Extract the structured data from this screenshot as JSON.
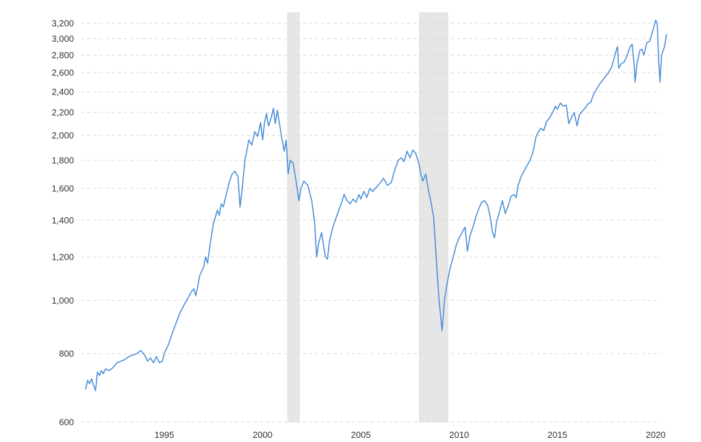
{
  "chart_data": {
    "type": "line",
    "title": "",
    "xlabel": "",
    "ylabel": "",
    "y_scale": "log",
    "xlim": [
      1990.75,
      2020.25
    ],
    "ylim": [
      600,
      3350
    ],
    "grid": true,
    "legend": "none",
    "x_ticks": [
      1995,
      2000,
      2005,
      2010,
      2015,
      2020
    ],
    "x_tick_labels": [
      "1995",
      "2000",
      "2005",
      "2010",
      "2015",
      "2020"
    ],
    "y_ticks": [
      600,
      800,
      1000,
      1200,
      1400,
      1600,
      1800,
      2000,
      2200,
      2400,
      2600,
      2800,
      3000,
      3200
    ],
    "y_tick_labels": [
      "600",
      "800",
      "1,000",
      "1,200",
      "1,400",
      "1,600",
      "1,800",
      "2,000",
      "2,200",
      "2,400",
      "2,600",
      "2,800",
      "3,000",
      "3,200"
    ],
    "shaded_periods": [
      [
        2001.25,
        2001.9
      ],
      [
        2007.95,
        2009.45
      ]
    ],
    "colors": {
      "series": "#4a90d9",
      "shade": "#e6e6e6",
      "grid": "#d9d9d9",
      "text": "#333333"
    },
    "series": [
      {
        "points": [
          [
            1991.0,
            690
          ],
          [
            1991.1,
            715
          ],
          [
            1991.2,
            705
          ],
          [
            1991.3,
            720
          ],
          [
            1991.4,
            700
          ],
          [
            1991.5,
            685
          ],
          [
            1991.6,
            740
          ],
          [
            1991.7,
            730
          ],
          [
            1991.8,
            745
          ],
          [
            1991.9,
            735
          ],
          [
            1992.0,
            750
          ],
          [
            1992.2,
            745
          ],
          [
            1992.4,
            755
          ],
          [
            1992.6,
            770
          ],
          [
            1992.8,
            775
          ],
          [
            1993.0,
            780
          ],
          [
            1993.2,
            790
          ],
          [
            1993.4,
            795
          ],
          [
            1993.6,
            800
          ],
          [
            1993.8,
            810
          ],
          [
            1994.0,
            795
          ],
          [
            1994.15,
            775
          ],
          [
            1994.3,
            785
          ],
          [
            1994.45,
            770
          ],
          [
            1994.6,
            790
          ],
          [
            1994.75,
            770
          ],
          [
            1994.9,
            775
          ],
          [
            1995.0,
            800
          ],
          [
            1995.2,
            830
          ],
          [
            1995.4,
            870
          ],
          [
            1995.6,
            910
          ],
          [
            1995.8,
            950
          ],
          [
            1996.0,
            980
          ],
          [
            1996.2,
            1010
          ],
          [
            1996.4,
            1040
          ],
          [
            1996.5,
            1050
          ],
          [
            1996.6,
            1020
          ],
          [
            1996.7,
            1060
          ],
          [
            1996.8,
            1110
          ],
          [
            1997.0,
            1150
          ],
          [
            1997.1,
            1200
          ],
          [
            1997.2,
            1170
          ],
          [
            1997.35,
            1280
          ],
          [
            1997.5,
            1380
          ],
          [
            1997.6,
            1420
          ],
          [
            1997.7,
            1460
          ],
          [
            1997.8,
            1430
          ],
          [
            1997.9,
            1500
          ],
          [
            1998.0,
            1480
          ],
          [
            1998.15,
            1560
          ],
          [
            1998.3,
            1640
          ],
          [
            1998.45,
            1700
          ],
          [
            1998.6,
            1720
          ],
          [
            1998.75,
            1680
          ],
          [
            1998.85,
            1480
          ],
          [
            1998.95,
            1580
          ],
          [
            1999.1,
            1800
          ],
          [
            1999.3,
            1960
          ],
          [
            1999.45,
            1920
          ],
          [
            1999.6,
            2030
          ],
          [
            1999.75,
            1990
          ],
          [
            1999.9,
            2110
          ],
          [
            2000.0,
            1960
          ],
          [
            2000.1,
            2110
          ],
          [
            2000.2,
            2190
          ],
          [
            2000.3,
            2080
          ],
          [
            2000.45,
            2160
          ],
          [
            2000.55,
            2240
          ],
          [
            2000.65,
            2100
          ],
          [
            2000.75,
            2220
          ],
          [
            2000.85,
            2110
          ],
          [
            2000.95,
            2000
          ],
          [
            2001.1,
            1870
          ],
          [
            2001.2,
            1960
          ],
          [
            2001.3,
            1700
          ],
          [
            2001.4,
            1800
          ],
          [
            2001.55,
            1780
          ],
          [
            2001.7,
            1650
          ],
          [
            2001.85,
            1520
          ],
          [
            2001.95,
            1600
          ],
          [
            2002.1,
            1650
          ],
          [
            2002.3,
            1620
          ],
          [
            2002.5,
            1520
          ],
          [
            2002.65,
            1380
          ],
          [
            2002.75,
            1200
          ],
          [
            2002.85,
            1270
          ],
          [
            2003.0,
            1330
          ],
          [
            2003.1,
            1260
          ],
          [
            2003.2,
            1200
          ],
          [
            2003.3,
            1190
          ],
          [
            2003.4,
            1280
          ],
          [
            2003.55,
            1350
          ],
          [
            2003.7,
            1400
          ],
          [
            2003.85,
            1450
          ],
          [
            2004.0,
            1500
          ],
          [
            2004.15,
            1560
          ],
          [
            2004.3,
            1520
          ],
          [
            2004.45,
            1500
          ],
          [
            2004.6,
            1530
          ],
          [
            2004.75,
            1510
          ],
          [
            2004.9,
            1560
          ],
          [
            2005.0,
            1530
          ],
          [
            2005.15,
            1580
          ],
          [
            2005.3,
            1540
          ],
          [
            2005.45,
            1600
          ],
          [
            2005.6,
            1580
          ],
          [
            2005.8,
            1610
          ],
          [
            2006.0,
            1640
          ],
          [
            2006.15,
            1670
          ],
          [
            2006.35,
            1620
          ],
          [
            2006.55,
            1640
          ],
          [
            2006.7,
            1720
          ],
          [
            2006.9,
            1800
          ],
          [
            2007.05,
            1820
          ],
          [
            2007.2,
            1790
          ],
          [
            2007.35,
            1870
          ],
          [
            2007.5,
            1820
          ],
          [
            2007.65,
            1880
          ],
          [
            2007.8,
            1850
          ],
          [
            2007.95,
            1780
          ],
          [
            2008.05,
            1700
          ],
          [
            2008.15,
            1650
          ],
          [
            2008.3,
            1700
          ],
          [
            2008.45,
            1580
          ],
          [
            2008.55,
            1520
          ],
          [
            2008.7,
            1420
          ],
          [
            2008.8,
            1250
          ],
          [
            2008.9,
            1100
          ],
          [
            2008.98,
            1000
          ],
          [
            2009.08,
            920
          ],
          [
            2009.13,
            880
          ],
          [
            2009.25,
            1000
          ],
          [
            2009.4,
            1080
          ],
          [
            2009.55,
            1150
          ],
          [
            2009.7,
            1200
          ],
          [
            2009.85,
            1260
          ],
          [
            2010.0,
            1300
          ],
          [
            2010.15,
            1330
          ],
          [
            2010.3,
            1360
          ],
          [
            2010.42,
            1230
          ],
          [
            2010.55,
            1310
          ],
          [
            2010.7,
            1360
          ],
          [
            2010.85,
            1420
          ],
          [
            2011.0,
            1470
          ],
          [
            2011.15,
            1510
          ],
          [
            2011.3,
            1520
          ],
          [
            2011.45,
            1490
          ],
          [
            2011.58,
            1420
          ],
          [
            2011.7,
            1330
          ],
          [
            2011.8,
            1300
          ],
          [
            2011.9,
            1390
          ],
          [
            2012.05,
            1450
          ],
          [
            2012.2,
            1520
          ],
          [
            2012.35,
            1440
          ],
          [
            2012.5,
            1490
          ],
          [
            2012.65,
            1550
          ],
          [
            2012.8,
            1560
          ],
          [
            2012.9,
            1540
          ],
          [
            2013.0,
            1620
          ],
          [
            2013.15,
            1680
          ],
          [
            2013.3,
            1720
          ],
          [
            2013.45,
            1760
          ],
          [
            2013.6,
            1800
          ],
          [
            2013.75,
            1860
          ],
          [
            2013.9,
            1980
          ],
          [
            2014.0,
            2020
          ],
          [
            2014.15,
            2060
          ],
          [
            2014.3,
            2040
          ],
          [
            2014.45,
            2120
          ],
          [
            2014.6,
            2150
          ],
          [
            2014.75,
            2200
          ],
          [
            2014.9,
            2260
          ],
          [
            2015.0,
            2230
          ],
          [
            2015.15,
            2290
          ],
          [
            2015.3,
            2260
          ],
          [
            2015.45,
            2270
          ],
          [
            2015.58,
            2100
          ],
          [
            2015.7,
            2150
          ],
          [
            2015.85,
            2200
          ],
          [
            2016.0,
            2080
          ],
          [
            2016.12,
            2180
          ],
          [
            2016.25,
            2210
          ],
          [
            2016.4,
            2240
          ],
          [
            2016.55,
            2280
          ],
          [
            2016.7,
            2300
          ],
          [
            2016.85,
            2380
          ],
          [
            2017.0,
            2430
          ],
          [
            2017.15,
            2480
          ],
          [
            2017.3,
            2520
          ],
          [
            2017.45,
            2560
          ],
          [
            2017.6,
            2600
          ],
          [
            2017.75,
            2660
          ],
          [
            2017.88,
            2760
          ],
          [
            2018.0,
            2860
          ],
          [
            2018.06,
            2900
          ],
          [
            2018.12,
            2650
          ],
          [
            2018.25,
            2700
          ],
          [
            2018.4,
            2720
          ],
          [
            2018.55,
            2800
          ],
          [
            2018.7,
            2900
          ],
          [
            2018.8,
            2930
          ],
          [
            2018.9,
            2700
          ],
          [
            2018.95,
            2500
          ],
          [
            2019.05,
            2700
          ],
          [
            2019.2,
            2860
          ],
          [
            2019.3,
            2870
          ],
          [
            2019.4,
            2800
          ],
          [
            2019.55,
            2950
          ],
          [
            2019.7,
            2970
          ],
          [
            2019.85,
            3100
          ],
          [
            2020.0,
            3240
          ],
          [
            2020.08,
            3200
          ],
          [
            2020.15,
            2750
          ],
          [
            2020.22,
            2500
          ],
          [
            2020.3,
            2800
          ],
          [
            2020.45,
            2900
          ],
          [
            2020.55,
            3050
          ]
        ]
      }
    ]
  }
}
